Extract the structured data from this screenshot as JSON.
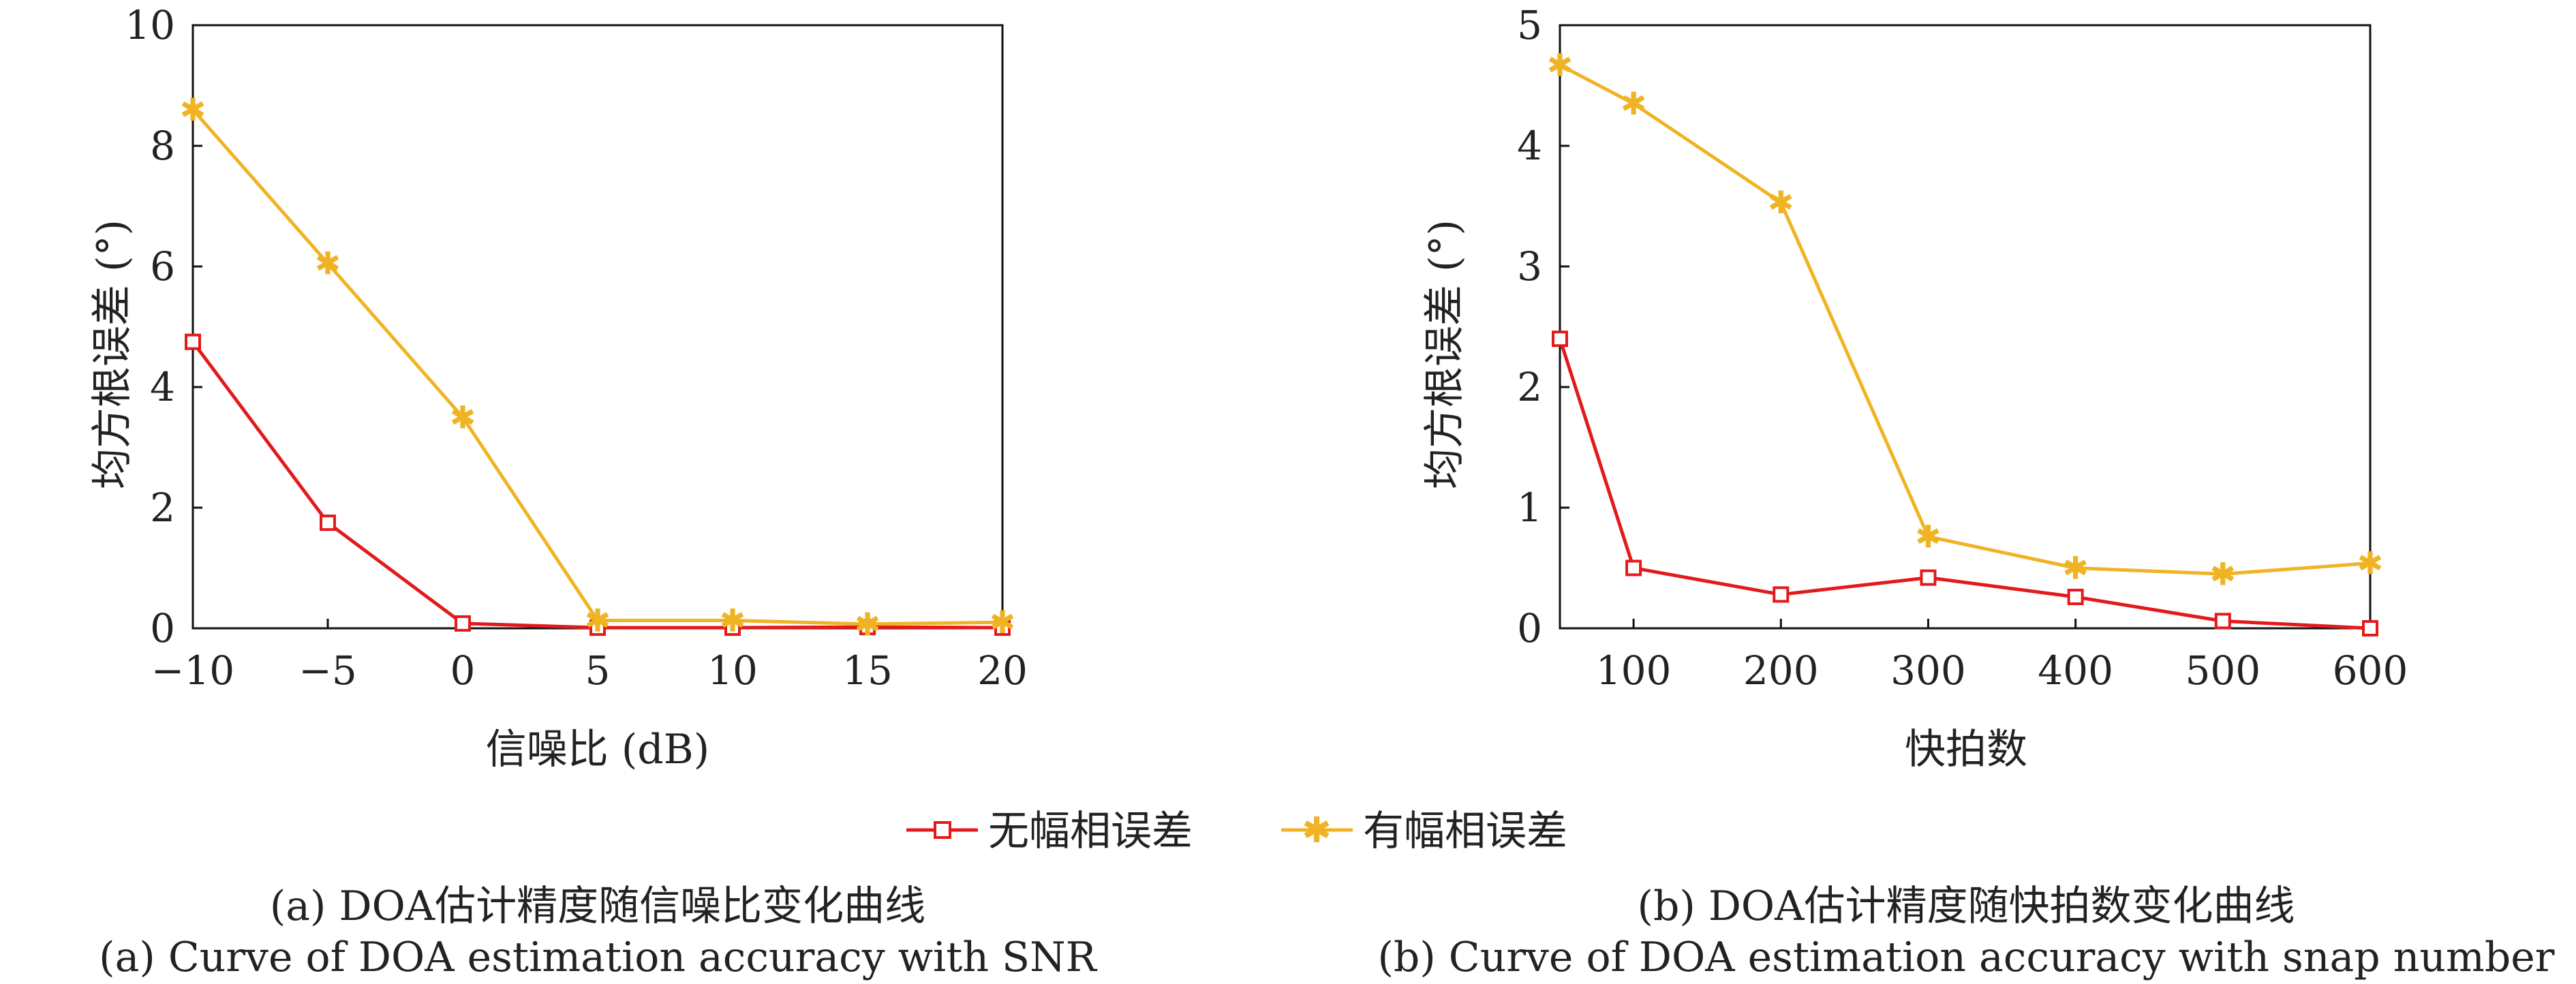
{
  "colors": {
    "series_no_error": "#e31a1c",
    "series_with_error": "#f0b323",
    "axis": "#111111"
  },
  "legend": {
    "items": [
      {
        "label": "无幅相误差",
        "color": "#e31a1c",
        "marker": "square"
      },
      {
        "label": "有幅相误差",
        "color": "#f0b323",
        "marker": "star"
      }
    ]
  },
  "chart_data": [
    {
      "type": "line",
      "xlabel": "信噪比 (dB)",
      "ylabel": "均方根误差 (°)",
      "xlim": [
        -10,
        20
      ],
      "ylim": [
        0,
        10
      ],
      "xticks": [
        -10,
        -5,
        0,
        5,
        10,
        15,
        20
      ],
      "xtick_labels": [
        "−10",
        "−5",
        "0",
        "5",
        "10",
        "15",
        "20"
      ],
      "yticks": [
        0,
        2,
        4,
        6,
        8,
        10
      ],
      "ytick_labels": [
        "0",
        "2",
        "4",
        "6",
        "8",
        "10"
      ],
      "x": [
        -10,
        -5,
        0,
        5,
        10,
        15,
        20
      ],
      "series": [
        {
          "name": "无幅相误差",
          "color": "#e31a1c",
          "marker": "square",
          "values": [
            4.75,
            1.75,
            0.08,
            0.01,
            0.01,
            0.02,
            0.01
          ]
        },
        {
          "name": "有幅相误差",
          "color": "#f0b323",
          "marker": "star",
          "values": [
            8.6,
            6.05,
            3.5,
            0.13,
            0.13,
            0.07,
            0.1
          ]
        }
      ],
      "caption_cn": "(a) DOA估计精度随信噪比变化曲线",
      "caption_en": "(a) Curve of DOA estimation accuracy with SNR",
      "grid": false
    },
    {
      "type": "line",
      "xlabel": "快拍数",
      "ylabel": "均方根误差 (°)",
      "xlim": [
        50,
        600
      ],
      "ylim": [
        0,
        5
      ],
      "xticks": [
        100,
        200,
        300,
        400,
        500,
        600
      ],
      "xtick_labels": [
        "100",
        "200",
        "300",
        "400",
        "500",
        "600"
      ],
      "yticks": [
        0,
        1,
        2,
        3,
        4,
        5
      ],
      "ytick_labels": [
        "0",
        "1",
        "2",
        "3",
        "4",
        "5"
      ],
      "x": [
        50,
        100,
        200,
        300,
        400,
        500,
        600
      ],
      "series": [
        {
          "name": "无幅相误差",
          "color": "#e31a1c",
          "marker": "square",
          "values": [
            2.4,
            0.5,
            0.28,
            0.42,
            0.26,
            0.06,
            0.0
          ]
        },
        {
          "name": "有幅相误差",
          "color": "#f0b323",
          "marker": "star",
          "values": [
            4.67,
            4.35,
            3.53,
            0.76,
            0.5,
            0.45,
            0.54
          ]
        }
      ],
      "caption_cn": "(b) DOA估计精度随快拍数变化曲线",
      "caption_en": "(b) Curve of DOA estimation accuracy with snap number",
      "grid": false
    }
  ]
}
